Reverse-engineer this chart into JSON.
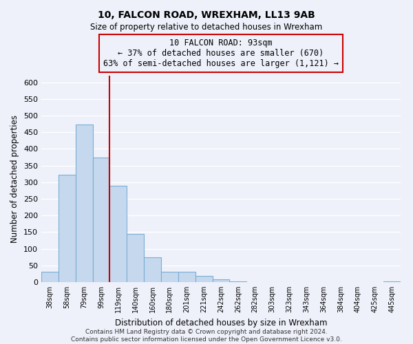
{
  "title": "10, FALCON ROAD, WREXHAM, LL13 9AB",
  "subtitle": "Size of property relative to detached houses in Wrexham",
  "xlabel": "Distribution of detached houses by size in Wrexham",
  "ylabel": "Number of detached properties",
  "bar_color": "#c5d8ee",
  "bar_edge_color": "#7aaed4",
  "background_color": "#eef1fa",
  "grid_color": "#ffffff",
  "annotation_box_edge": "#cc0000",
  "vline_color": "#cc0000",
  "bin_labels": [
    "38sqm",
    "58sqm",
    "79sqm",
    "99sqm",
    "119sqm",
    "140sqm",
    "160sqm",
    "180sqm",
    "201sqm",
    "221sqm",
    "242sqm",
    "262sqm",
    "282sqm",
    "303sqm",
    "323sqm",
    "343sqm",
    "364sqm",
    "384sqm",
    "404sqm",
    "425sqm",
    "445sqm"
  ],
  "bar_heights": [
    32,
    323,
    473,
    375,
    290,
    145,
    75,
    32,
    30,
    18,
    8,
    2,
    1,
    0,
    0,
    0,
    0,
    0,
    0,
    0,
    2
  ],
  "vline_x": 3.5,
  "annotation_text": "10 FALCON ROAD: 93sqm\n← 37% of detached houses are smaller (670)\n63% of semi-detached houses are larger (1,121) →",
  "ylim": [
    0,
    620
  ],
  "yticks": [
    0,
    50,
    100,
    150,
    200,
    250,
    300,
    350,
    400,
    450,
    500,
    550,
    600
  ],
  "footer_line1": "Contains HM Land Registry data © Crown copyright and database right 2024.",
  "footer_line2": "Contains public sector information licensed under the Open Government Licence v3.0."
}
